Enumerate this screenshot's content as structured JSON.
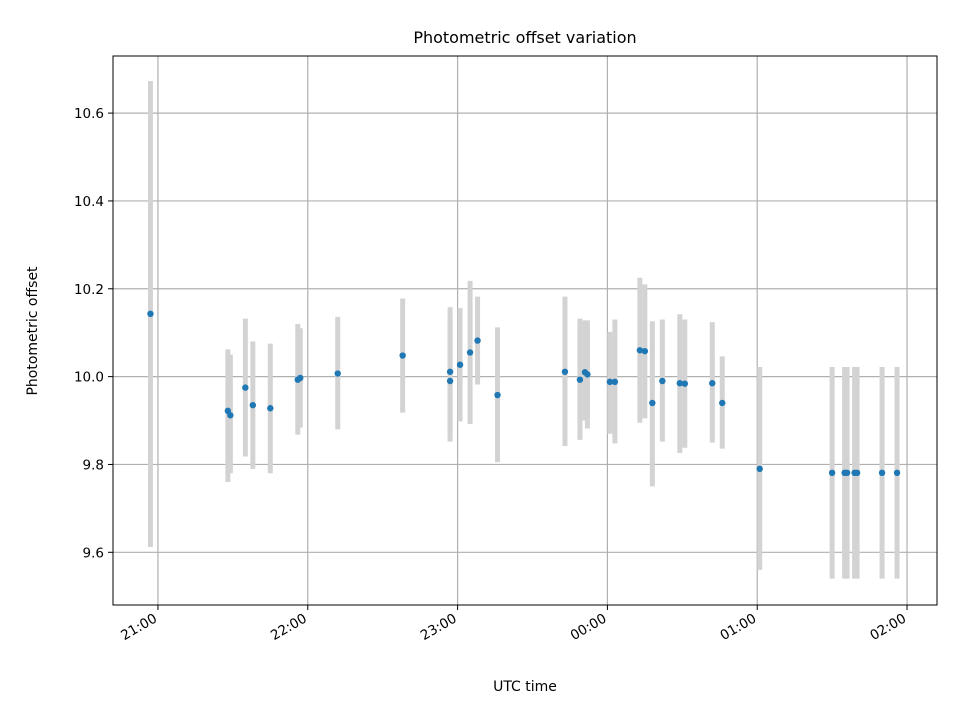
{
  "chart_data": {
    "type": "scatter",
    "title": "Photometric offset variation",
    "xlabel": "UTC time",
    "ylabel": "Photometric offset",
    "x_unit": "time",
    "xlim": [
      "20:42",
      "02:12"
    ],
    "ylim": [
      9.48,
      10.73
    ],
    "xticks": [
      "21:00",
      "22:00",
      "23:00",
      "00:00",
      "01:00",
      "02:00"
    ],
    "yticks": [
      9.6,
      9.8,
      10.0,
      10.2,
      10.4,
      10.6
    ],
    "grid": true,
    "colors": {
      "points": "#1f77b4",
      "error_bars": "#d3d3d3",
      "grid": "#b0b0b0"
    },
    "points": [
      {
        "x": "20:57",
        "y": 10.143,
        "low": 9.612,
        "high": 10.673
      },
      {
        "x": "21:28",
        "y": 9.922,
        "low": 9.76,
        "high": 10.062
      },
      {
        "x": "21:29",
        "y": 9.912,
        "low": 9.78,
        "high": 10.05
      },
      {
        "x": "21:35",
        "y": 9.975,
        "low": 9.818,
        "high": 10.132
      },
      {
        "x": "21:38",
        "y": 9.935,
        "low": 9.79,
        "high": 10.08
      },
      {
        "x": "21:45",
        "y": 9.928,
        "low": 9.78,
        "high": 10.075
      },
      {
        "x": "21:56",
        "y": 9.993,
        "low": 9.868,
        "high": 10.12
      },
      {
        "x": "21:57",
        "y": 9.997,
        "low": 9.884,
        "high": 10.11
      },
      {
        "x": "22:12",
        "y": 10.007,
        "low": 9.88,
        "high": 10.136
      },
      {
        "x": "22:38",
        "y": 10.048,
        "low": 9.918,
        "high": 10.178
      },
      {
        "x": "22:57",
        "y": 10.011,
        "low": 9.862,
        "high": 10.158
      },
      {
        "x": "22:57",
        "y": 9.99,
        "low": 9.852,
        "high": 10.13
      },
      {
        "x": "23:01",
        "y": 10.027,
        "low": 9.898,
        "high": 10.156
      },
      {
        "x": "23:05",
        "y": 10.055,
        "low": 9.892,
        "high": 10.218
      },
      {
        "x": "23:08",
        "y": 10.082,
        "low": 9.982,
        "high": 10.182
      },
      {
        "x": "23:16",
        "y": 9.958,
        "low": 9.805,
        "high": 10.112
      },
      {
        "x": "23:43",
        "y": 10.011,
        "low": 9.842,
        "high": 10.182
      },
      {
        "x": "23:49",
        "y": 9.993,
        "low": 9.856,
        "high": 10.132
      },
      {
        "x": "23:51",
        "y": 10.01,
        "low": 9.9,
        "high": 10.128
      },
      {
        "x": "23:52",
        "y": 10.005,
        "low": 9.882,
        "high": 10.128
      },
      {
        "x": "00:01",
        "y": 9.988,
        "low": 9.87,
        "high": 10.102
      },
      {
        "x": "00:03",
        "y": 9.988,
        "low": 9.848,
        "high": 10.13
      },
      {
        "x": "00:13",
        "y": 10.06,
        "low": 9.895,
        "high": 10.225
      },
      {
        "x": "00:15",
        "y": 10.058,
        "low": 9.905,
        "high": 10.21
      },
      {
        "x": "00:18",
        "y": 9.94,
        "low": 9.75,
        "high": 10.126
      },
      {
        "x": "00:22",
        "y": 9.99,
        "low": 9.852,
        "high": 10.13
      },
      {
        "x": "00:29",
        "y": 9.985,
        "low": 9.826,
        "high": 10.142
      },
      {
        "x": "00:31",
        "y": 9.984,
        "low": 9.838,
        "high": 10.13
      },
      {
        "x": "00:42",
        "y": 9.985,
        "low": 9.85,
        "high": 10.124
      },
      {
        "x": "00:46",
        "y": 9.94,
        "low": 9.836,
        "high": 10.046
      },
      {
        "x": "01:01",
        "y": 9.79,
        "low": 9.56,
        "high": 10.022
      },
      {
        "x": "01:30",
        "y": 9.781,
        "low": 9.54,
        "high": 10.022
      },
      {
        "x": "01:35",
        "y": 9.781,
        "low": 9.54,
        "high": 10.022
      },
      {
        "x": "01:36",
        "y": 9.781,
        "low": 9.54,
        "high": 10.022
      },
      {
        "x": "01:39",
        "y": 9.781,
        "low": 9.54,
        "high": 10.022
      },
      {
        "x": "01:40",
        "y": 9.781,
        "low": 9.54,
        "high": 10.022
      },
      {
        "x": "01:50",
        "y": 9.781,
        "low": 9.54,
        "high": 10.022
      },
      {
        "x": "01:56",
        "y": 9.781,
        "low": 9.54,
        "high": 10.022
      }
    ]
  }
}
